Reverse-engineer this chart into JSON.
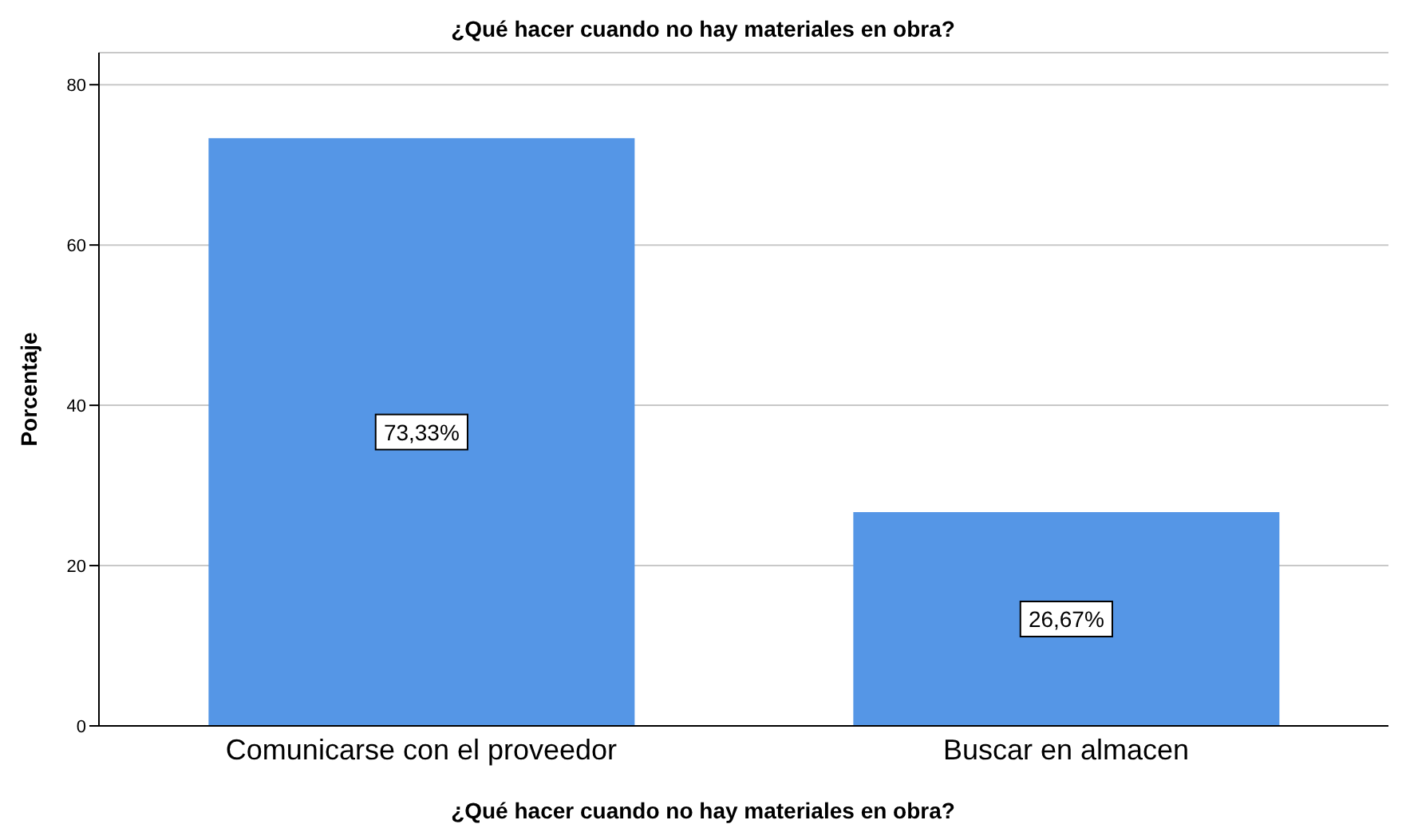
{
  "chart_data": {
    "type": "bar",
    "title": "¿Qué hacer cuando no hay materiales en obra?",
    "xlabel": "¿Qué hacer cuando no hay materiales en obra?",
    "ylabel": "Porcentaje",
    "categories": [
      "Comunicarse con el proveedor",
      "Buscar en almacen"
    ],
    "values": [
      73.33,
      26.67
    ],
    "value_labels": [
      "73,33%",
      "26,67%"
    ],
    "color": "#5596e6",
    "ylim": [
      0,
      84
    ],
    "yticks": [
      0,
      20,
      40,
      60,
      80
    ],
    "grid": "y"
  }
}
